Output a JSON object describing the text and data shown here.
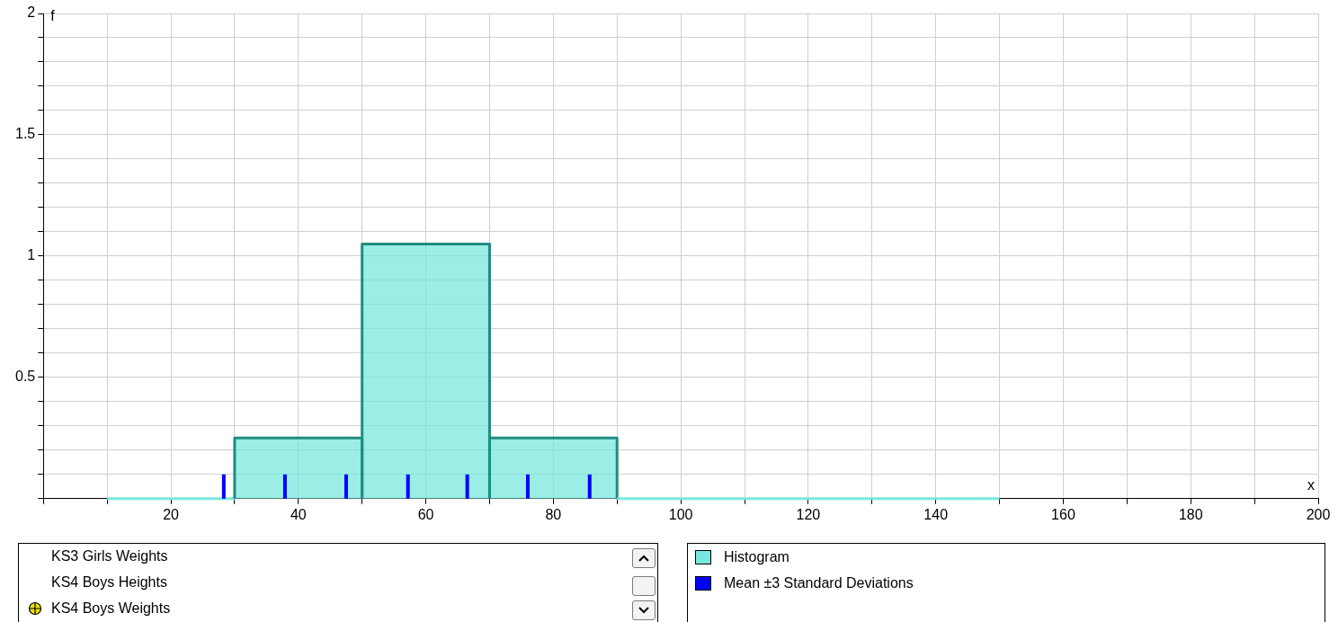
{
  "chart_data": {
    "type": "histogram",
    "xlabel": "x",
    "ylabel": "f",
    "series": [
      {
        "name": "Histogram",
        "color": "#78e8de",
        "bins": [
          10,
          30,
          50,
          70,
          90,
          110,
          130,
          150
        ],
        "values": [
          0,
          0.25,
          1.05,
          0.25,
          0,
          0,
          0
        ]
      },
      {
        "name": "Mean ±3 Standard Deviations",
        "type": "bar",
        "color": "#0000ff",
        "x": [
          28.3,
          37.9,
          47.5,
          57.2,
          66.5,
          76,
          85.7
        ],
        "values": [
          0.1,
          0.1,
          0.1,
          0.1,
          0.1,
          0.1,
          0.1
        ]
      }
    ],
    "xlim": [
      0,
      200
    ],
    "xticks": [
      {
        "value": 0,
        "label": null
      },
      {
        "value": 10,
        "label": null
      },
      20,
      {
        "value": 30,
        "label": null
      },
      40,
      {
        "value": 50,
        "label": null
      },
      60,
      {
        "value": 70,
        "label": null
      },
      80,
      {
        "value": 90,
        "label": null
      },
      100,
      {
        "value": 110,
        "label": null
      },
      120,
      {
        "value": 130,
        "label": null
      },
      140,
      {
        "value": 150,
        "label": null
      },
      160,
      {
        "value": 170,
        "label": null
      },
      180,
      {
        "value": 190,
        "label": null
      },
      200
    ],
    "ylim": [
      0,
      2
    ],
    "yticks": [
      {
        "value": 0,
        "label": null
      },
      {
        "value": 0.1,
        "label": null
      },
      {
        "value": 0.2,
        "label": null
      },
      {
        "value": 0.3,
        "label": null
      },
      {
        "value": 0.4,
        "label": null
      },
      0.5,
      {
        "value": 0.6,
        "label": null
      },
      {
        "value": 0.7,
        "label": null
      },
      {
        "value": 0.8,
        "label": null
      },
      {
        "value": 0.9,
        "label": null
      },
      1,
      {
        "value": 1.1,
        "label": null
      },
      {
        "value": 1.2,
        "label": null
      },
      {
        "value": 1.3,
        "label": null
      },
      {
        "value": 1.4,
        "label": null
      },
      1.5,
      {
        "value": 1.6,
        "label": null
      },
      {
        "value": 1.7,
        "label": null
      },
      {
        "value": 1.8,
        "label": null
      },
      {
        "value": 1.9,
        "label": null
      },
      2
    ],
    "grid": true,
    "legend": "bottom right",
    "annotations": [
      "KS3 Girls Weights",
      "KS4 Boys Heights",
      "KS4 Boys Weights"
    ]
  }
}
